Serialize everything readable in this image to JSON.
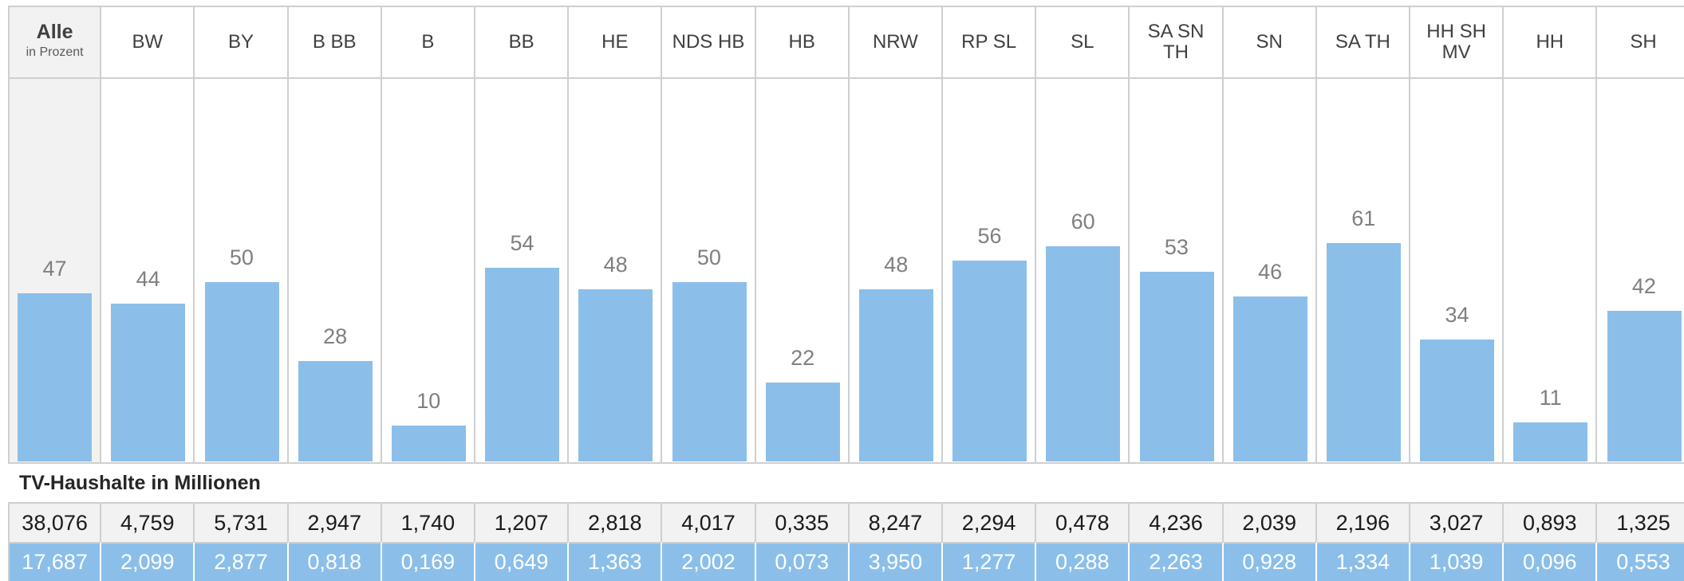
{
  "chart_data": {
    "type": "bar",
    "unit_label": "in Prozent",
    "categories": [
      "Alle",
      "BW",
      "BY",
      "B BB",
      "B",
      "BB",
      "HE",
      "NDS HB",
      "HB",
      "NRW",
      "RP SL",
      "SL",
      "SA SN TH",
      "SN",
      "SA TH",
      "HH SH MV",
      "HH",
      "SH"
    ],
    "values": [
      47,
      44,
      50,
      28,
      10,
      54,
      48,
      50,
      22,
      48,
      56,
      60,
      53,
      46,
      61,
      34,
      11,
      42
    ],
    "color": "#8bbfea"
  },
  "table": {
    "title": "TV-Haushalte in Millionen",
    "rows": [
      [
        "38,076",
        "4,759",
        "5,731",
        "2,947",
        "1,740",
        "1,207",
        "2,818",
        "4,017",
        "0,335",
        "8,247",
        "2,294",
        "0,478",
        "4,236",
        "2,039",
        "2,196",
        "3,027",
        "0,893",
        "1,325"
      ],
      [
        "17,687",
        "2,099",
        "2,877",
        "0,818",
        "0,169",
        "0,649",
        "1,363",
        "2,002",
        "0,073",
        "3,950",
        "1,277",
        "0,288",
        "2,263",
        "0,928",
        "1,334",
        "1,039",
        "0,096",
        "0,553"
      ]
    ]
  }
}
